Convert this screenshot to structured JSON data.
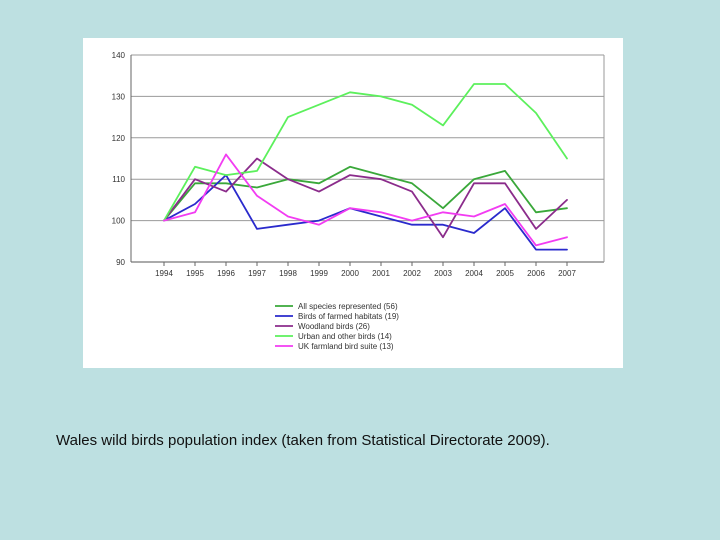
{
  "caption": "Wales wild birds population index (taken from Statistical Directorate 2009).",
  "chart_data": {
    "type": "line",
    "title": "",
    "xlabel": "",
    "ylabel": "",
    "x": [
      "1994",
      "1995",
      "1996",
      "1997",
      "1998",
      "1999",
      "2000",
      "2001",
      "2002",
      "2003",
      "2004",
      "2005",
      "2006",
      "2007"
    ],
    "ylim": [
      90,
      140
    ],
    "yticks": [
      90,
      100,
      110,
      120,
      130,
      140
    ],
    "grid": "horizontal",
    "legend_position": "bottom",
    "series": [
      {
        "name": "All species represented (56)",
        "color": "#3aa83a",
        "values": [
          100,
          109,
          109,
          108,
          110,
          109,
          113,
          111,
          109,
          103,
          110,
          112,
          102,
          103
        ]
      },
      {
        "name": "Birds of farmed habitats (19)",
        "color": "#2a2acc",
        "values": [
          100,
          104,
          111,
          98,
          99,
          100,
          103,
          101,
          99,
          99,
          97,
          103,
          93,
          93
        ]
      },
      {
        "name": "Woodland birds (26)",
        "color": "#8b2c8b",
        "values": [
          100,
          110,
          107,
          115,
          110,
          107,
          111,
          110,
          107,
          96,
          109,
          109,
          98,
          105
        ]
      },
      {
        "name": "Urban and other birds (14)",
        "color": "#5cf05c",
        "values": [
          100,
          113,
          111,
          112,
          125,
          128,
          131,
          130,
          128,
          123,
          133,
          133,
          126,
          115
        ]
      },
      {
        "name": "UK farmland bird suite (13)",
        "color": "#f23cf2",
        "values": [
          100,
          102,
          116,
          106,
          101,
          99,
          103,
          102,
          100,
          102,
          101,
          104,
          94,
          96
        ]
      }
    ]
  }
}
